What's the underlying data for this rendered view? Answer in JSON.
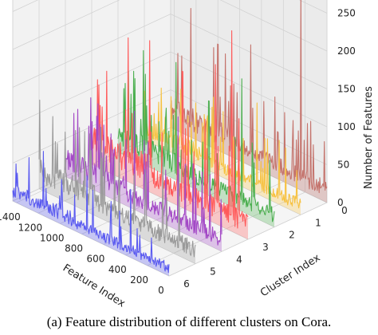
{
  "caption": "(a)  Feature distribution of different clusters on Cora.",
  "chart_data": {
    "type": "3d-line",
    "title": "",
    "xlabel": "Feature Index",
    "ylabel": "Cluster Index",
    "zlabel": "Number of Features",
    "xlim": [
      0,
      1433
    ],
    "ylim": [
      0,
      6
    ],
    "zlim": [
      0,
      280
    ],
    "x_ticks": [
      0,
      200,
      400,
      600,
      800,
      1000,
      1200,
      1400
    ],
    "y_ticks": [
      0,
      1,
      2,
      3,
      4,
      5,
      6
    ],
    "z_ticks": [
      0,
      50,
      100,
      150,
      200,
      250
    ],
    "grid": true,
    "series": [
      {
        "cluster": 0,
        "color": "#c4736c",
        "baseline": 30,
        "peaks": [
          [
            240,
            270
          ],
          [
            700,
            160
          ],
          [
            1000,
            140
          ],
          [
            1250,
            170
          ]
        ]
      },
      {
        "cluster": 1,
        "color": "#f7c242",
        "baseline": 22,
        "peaks": [
          [
            400,
            120
          ],
          [
            800,
            100
          ],
          [
            1100,
            90
          ]
        ]
      },
      {
        "cluster": 2,
        "color": "#4caf50",
        "baseline": 28,
        "peaks": [
          [
            300,
            175
          ],
          [
            600,
            125
          ],
          [
            900,
            155
          ],
          [
            1200,
            150
          ]
        ]
      },
      {
        "cluster": 3,
        "color": "#ff5a5a",
        "baseline": 38,
        "peaks": [
          [
            150,
            265
          ],
          [
            300,
            210
          ],
          [
            600,
            180
          ],
          [
            900,
            200
          ],
          [
            1100,
            190
          ]
        ]
      },
      {
        "cluster": 4,
        "color": "#a349c6",
        "baseline": 28,
        "peaks": [
          [
            400,
            150
          ],
          [
            800,
            130
          ],
          [
            1200,
            120
          ]
        ]
      },
      {
        "cluster": 5,
        "color": "#9a9a9a",
        "baseline": 30,
        "peaks": [
          [
            300,
            120
          ],
          [
            700,
            110
          ],
          [
            1100,
            100
          ]
        ]
      },
      {
        "cluster": 6,
        "color": "#5a5af0",
        "baseline": 18,
        "peaks": [
          [
            350,
            90
          ],
          [
            750,
            80
          ],
          [
            1150,
            85
          ]
        ]
      }
    ]
  }
}
